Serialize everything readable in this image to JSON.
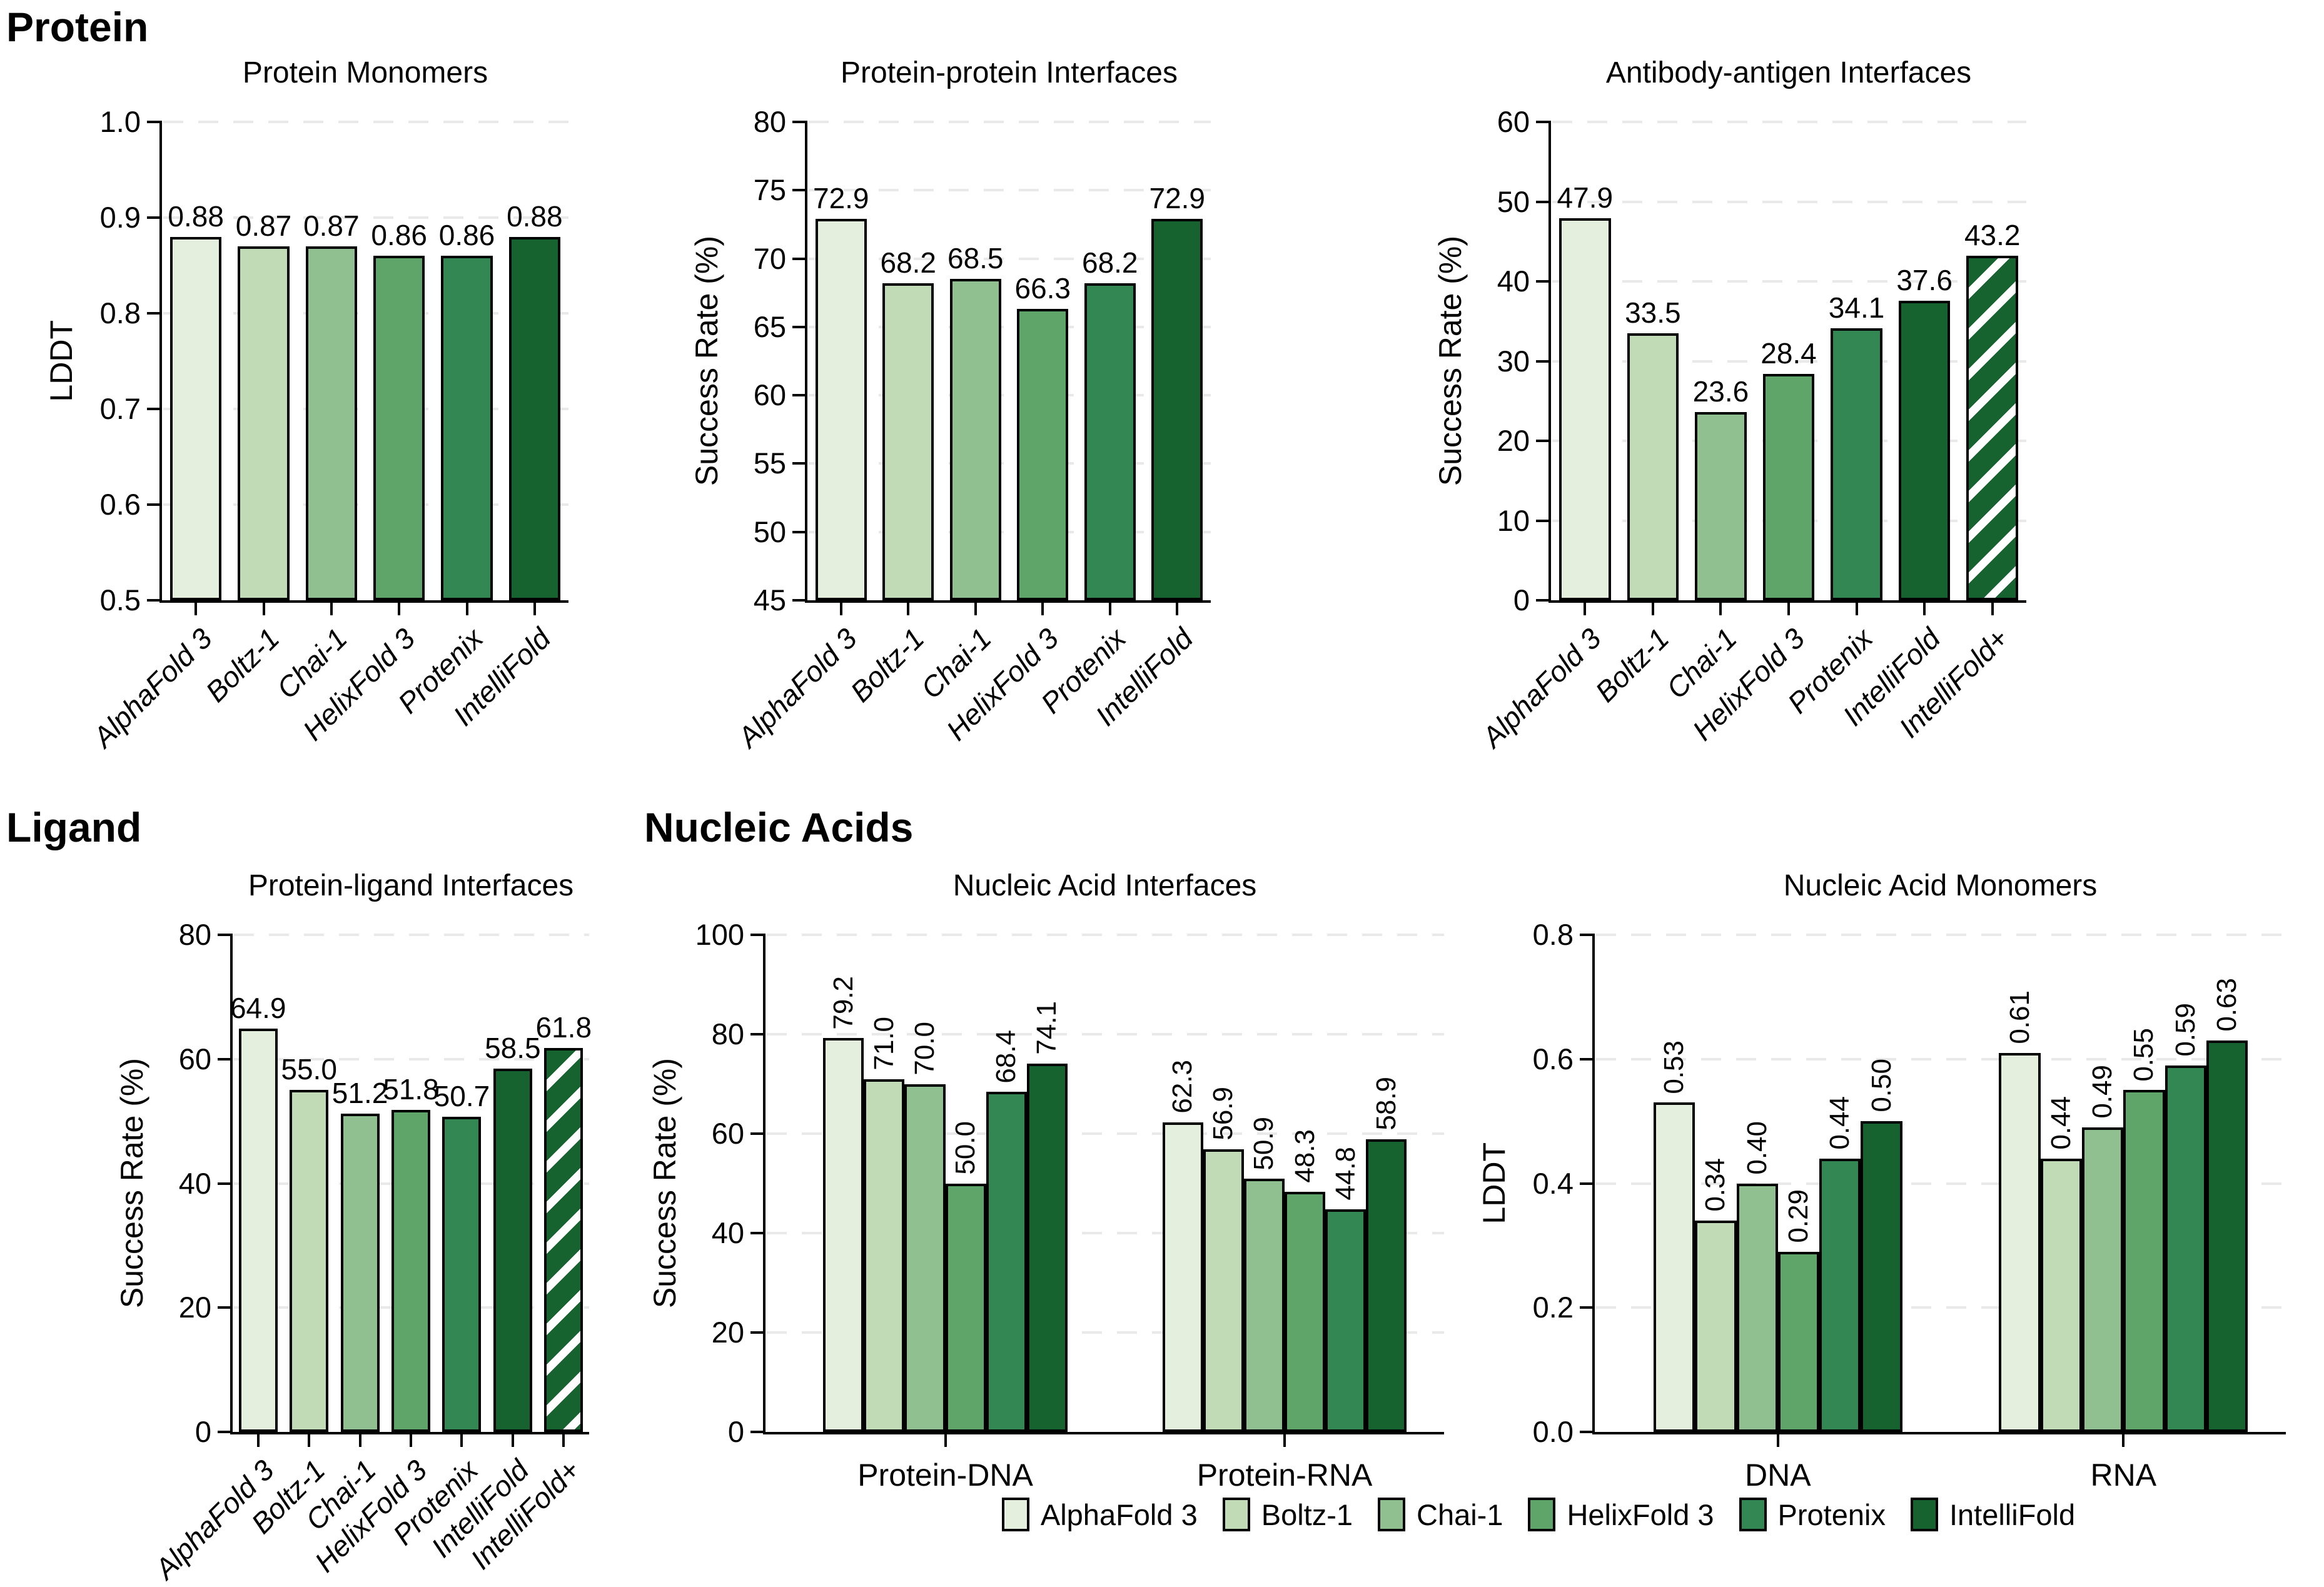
{
  "sections": {
    "protein": "Protein",
    "ligand": "Ligand",
    "nucleic_acids": "Nucleic Acids"
  },
  "palette": {
    "AlphaFold 3": "#e4efde",
    "Boltz-1": "#c1dbb7",
    "Chai-1": "#90c090",
    "HelixFold 3": "#5fa468",
    "Protenix": "#338752",
    "IntelliFold": "#176330",
    "IntelliFold+": "#176330",
    "bar_edge": "#000000",
    "grid_color": "#e9e9e9",
    "hatch_stripe": "#ffffff"
  },
  "legend": {
    "items": [
      {
        "label": "AlphaFold 3",
        "color": "#e4efde"
      },
      {
        "label": "Boltz-1",
        "color": "#c1dbb7"
      },
      {
        "label": "Chai-1",
        "color": "#90c090"
      },
      {
        "label": "HelixFold 3",
        "color": "#5fa468"
      },
      {
        "label": "Protenix",
        "color": "#338752"
      },
      {
        "label": "IntelliFold",
        "color": "#176330"
      }
    ]
  },
  "chart_data": [
    {
      "id": "protein-monomers",
      "type": "bar",
      "title": "Protein Monomers",
      "xlabel": "",
      "ylabel": "LDDT",
      "ylim": [
        0.5,
        1.0
      ],
      "yticks": [
        0.5,
        0.6,
        0.7,
        0.8,
        0.9,
        1.0
      ],
      "ytick_labels": [
        "0.5",
        "0.6",
        "0.7",
        "0.8",
        "0.9",
        "1.0"
      ],
      "grid": "dashed-horizontal",
      "legend_position": "none",
      "categories": [
        "AlphaFold 3",
        "Boltz-1",
        "Chai-1",
        "HelixFold 3",
        "Protenix",
        "IntelliFold"
      ],
      "values": [
        0.88,
        0.87,
        0.87,
        0.86,
        0.86,
        0.88
      ],
      "value_labels": [
        "0.88",
        "0.87",
        "0.87",
        "0.86",
        "0.86",
        "0.88"
      ],
      "bar_colors": [
        "#e4efde",
        "#c1dbb7",
        "#90c090",
        "#5fa468",
        "#338752",
        "#176330"
      ],
      "hatched_bars": [],
      "value_label_orientation": "horizontal",
      "xtick_label_style": "rotated-italic"
    },
    {
      "id": "protein-protein-interfaces",
      "type": "bar",
      "title": "Protein-protein Interfaces",
      "xlabel": "",
      "ylabel": "Success Rate (%)",
      "ylim": [
        45,
        80
      ],
      "yticks": [
        45,
        50,
        55,
        60,
        65,
        70,
        75,
        80
      ],
      "ytick_labels": [
        "45",
        "50",
        "55",
        "60",
        "65",
        "70",
        "75",
        "80"
      ],
      "grid": "dashed-horizontal",
      "legend_position": "none",
      "categories": [
        "AlphaFold 3",
        "Boltz-1",
        "Chai-1",
        "HelixFold 3",
        "Protenix",
        "IntelliFold"
      ],
      "values": [
        72.9,
        68.2,
        68.5,
        66.3,
        68.2,
        72.9
      ],
      "value_labels": [
        "72.9",
        "68.2",
        "68.5",
        "66.3",
        "68.2",
        "72.9"
      ],
      "bar_colors": [
        "#e4efde",
        "#c1dbb7",
        "#90c090",
        "#5fa468",
        "#338752",
        "#176330"
      ],
      "hatched_bars": [],
      "value_label_orientation": "horizontal",
      "xtick_label_style": "rotated-italic"
    },
    {
      "id": "antibody-antigen-interfaces",
      "type": "bar",
      "title": "Antibody-antigen Interfaces",
      "xlabel": "",
      "ylabel": "Success Rate (%)",
      "ylim": [
        0,
        60
      ],
      "yticks": [
        0,
        10,
        20,
        30,
        40,
        50,
        60
      ],
      "ytick_labels": [
        "0",
        "10",
        "20",
        "30",
        "40",
        "50",
        "60"
      ],
      "grid": "dashed-horizontal",
      "legend_position": "none",
      "categories": [
        "AlphaFold 3",
        "Boltz-1",
        "Chai-1",
        "HelixFold 3",
        "Protenix",
        "IntelliFold",
        "IntelliFold+"
      ],
      "values": [
        47.9,
        33.5,
        23.6,
        28.4,
        34.1,
        37.6,
        43.2
      ],
      "value_labels": [
        "47.9",
        "33.5",
        "23.6",
        "28.4",
        "34.1",
        "37.6",
        "43.2"
      ],
      "bar_colors": [
        "#e4efde",
        "#c1dbb7",
        "#90c090",
        "#5fa468",
        "#338752",
        "#176330",
        "#176330"
      ],
      "hatched_bars": [
        "IntelliFold+"
      ],
      "value_label_orientation": "horizontal",
      "xtick_label_style": "rotated-italic"
    },
    {
      "id": "protein-ligand-interfaces",
      "type": "bar",
      "title": "Protein-ligand Interfaces",
      "xlabel": "",
      "ylabel": "Success Rate (%)",
      "ylim": [
        0,
        80
      ],
      "yticks": [
        0,
        20,
        40,
        60,
        80
      ],
      "ytick_labels": [
        "0",
        "20",
        "40",
        "60",
        "80"
      ],
      "grid": "dashed-horizontal",
      "legend_position": "none",
      "categories": [
        "AlphaFold 3",
        "Boltz-1",
        "Chai-1",
        "HelixFold 3",
        "Protenix",
        "IntelliFold",
        "IntelliFold+"
      ],
      "values": [
        64.9,
        55.0,
        51.2,
        51.8,
        50.7,
        58.5,
        61.8
      ],
      "value_labels": [
        "64.9",
        "55.0",
        "51.2",
        "51.8",
        "50.7",
        "58.5",
        "61.8"
      ],
      "bar_colors": [
        "#e4efde",
        "#c1dbb7",
        "#90c090",
        "#5fa468",
        "#338752",
        "#176330",
        "#176330"
      ],
      "hatched_bars": [
        "IntelliFold+"
      ],
      "value_label_orientation": "horizontal",
      "xtick_label_style": "rotated-italic"
    },
    {
      "id": "nucleic-acid-interfaces",
      "type": "bar",
      "title": "Nucleic Acid Interfaces",
      "xlabel": "",
      "ylabel": "Success Rate (%)",
      "ylim": [
        0,
        100
      ],
      "yticks": [
        0,
        20,
        40,
        60,
        80,
        100
      ],
      "ytick_labels": [
        "0",
        "20",
        "40",
        "60",
        "80",
        "100"
      ],
      "grid": "dashed-horizontal",
      "legend_position": "bottom",
      "categories": [
        "Protein-DNA",
        "Protein-RNA"
      ],
      "series": [
        {
          "name": "AlphaFold 3",
          "color": "#e4efde",
          "values": [
            79.2,
            62.3
          ],
          "value_labels": [
            "79.2",
            "62.3"
          ]
        },
        {
          "name": "Boltz-1",
          "color": "#c1dbb7",
          "values": [
            71.0,
            56.9
          ],
          "value_labels": [
            "71.0",
            "56.9"
          ]
        },
        {
          "name": "Chai-1",
          "color": "#90c090",
          "values": [
            70.0,
            50.9
          ],
          "value_labels": [
            "70.0",
            "50.9"
          ]
        },
        {
          "name": "HelixFold 3",
          "color": "#5fa468",
          "values": [
            50.0,
            48.3
          ],
          "value_labels": [
            "50.0",
            "48.3"
          ]
        },
        {
          "name": "Protenix",
          "color": "#338752",
          "values": [
            68.4,
            44.8
          ],
          "value_labels": [
            "68.4",
            "44.8"
          ]
        },
        {
          "name": "IntelliFold",
          "color": "#176330",
          "values": [
            74.1,
            58.9
          ],
          "value_labels": [
            "74.1",
            "58.9"
          ]
        }
      ],
      "value_label_orientation": "vertical",
      "xtick_label_style": "group-horizontal"
    },
    {
      "id": "nucleic-acid-monomers",
      "type": "bar",
      "title": "Nucleic Acid Monomers",
      "xlabel": "",
      "ylabel": "LDDT",
      "ylim": [
        0.0,
        0.8
      ],
      "yticks": [
        0.0,
        0.2,
        0.4,
        0.6,
        0.8
      ],
      "ytick_labels": [
        "0.0",
        "0.2",
        "0.4",
        "0.6",
        "0.8"
      ],
      "grid": "dashed-horizontal",
      "legend_position": "bottom",
      "categories": [
        "DNA",
        "RNA"
      ],
      "series": [
        {
          "name": "AlphaFold 3",
          "color": "#e4efde",
          "values": [
            0.53,
            0.61
          ],
          "value_labels": [
            "0.53",
            "0.61"
          ]
        },
        {
          "name": "Boltz-1",
          "color": "#c1dbb7",
          "values": [
            0.34,
            0.44
          ],
          "value_labels": [
            "0.34",
            "0.44"
          ]
        },
        {
          "name": "Chai-1",
          "color": "#90c090",
          "values": [
            0.4,
            0.49
          ],
          "value_labels": [
            "0.40",
            "0.49"
          ]
        },
        {
          "name": "HelixFold 3",
          "color": "#5fa468",
          "values": [
            0.29,
            0.55
          ],
          "value_labels": [
            "0.29",
            "0.55"
          ]
        },
        {
          "name": "Protenix",
          "color": "#338752",
          "values": [
            0.44,
            0.59
          ],
          "value_labels": [
            "0.44",
            "0.59"
          ]
        },
        {
          "name": "IntelliFold",
          "color": "#176330",
          "values": [
            0.5,
            0.63
          ],
          "value_labels": [
            "0.50",
            "0.63"
          ]
        }
      ],
      "value_label_orientation": "vertical",
      "xtick_label_style": "group-horizontal"
    }
  ]
}
